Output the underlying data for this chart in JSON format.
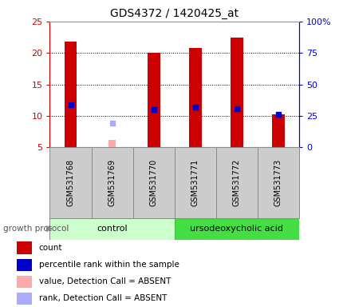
{
  "title": "GDS4372 / 1420425_at",
  "samples": [
    "GSM531768",
    "GSM531769",
    "GSM531770",
    "GSM531771",
    "GSM531772",
    "GSM531773"
  ],
  "count_values": [
    21.8,
    null,
    20.0,
    20.8,
    22.5,
    10.2
  ],
  "count_absent": [
    null,
    6.2,
    null,
    null,
    null,
    null
  ],
  "rank_values": [
    11.8,
    null,
    11.0,
    11.4,
    11.1,
    10.3
  ],
  "rank_absent": [
    null,
    8.8,
    null,
    null,
    null,
    null
  ],
  "y_min": 5,
  "y_max": 25,
  "y_ticks": [
    5,
    10,
    15,
    20,
    25
  ],
  "y2_ticks": [
    0,
    25,
    50,
    75,
    100
  ],
  "y2_labels": [
    "0",
    "25",
    "50",
    "75",
    "100%"
  ],
  "bar_width": 0.3,
  "color_count": "#cc0000",
  "color_rank": "#0000cc",
  "color_count_absent": "#ffaaaa",
  "color_rank_absent": "#aaaaff",
  "group1_label": "control",
  "group2_label": "ursodeoxycholic acid",
  "group1_color": "#ccffcc",
  "group2_color": "#44dd44",
  "growth_protocol_label": "growth protocol",
  "left_axis_color": "#cc0000",
  "right_axis_color": "#0000cc",
  "bg_color": "#ffffff",
  "tick_label_area_color": "#cccccc",
  "legend_items": [
    {
      "label": "count",
      "color": "#cc0000"
    },
    {
      "label": "percentile rank within the sample",
      "color": "#0000cc"
    },
    {
      "label": "value, Detection Call = ABSENT",
      "color": "#ffaaaa"
    },
    {
      "label": "rank, Detection Call = ABSENT",
      "color": "#aaaaff"
    }
  ]
}
